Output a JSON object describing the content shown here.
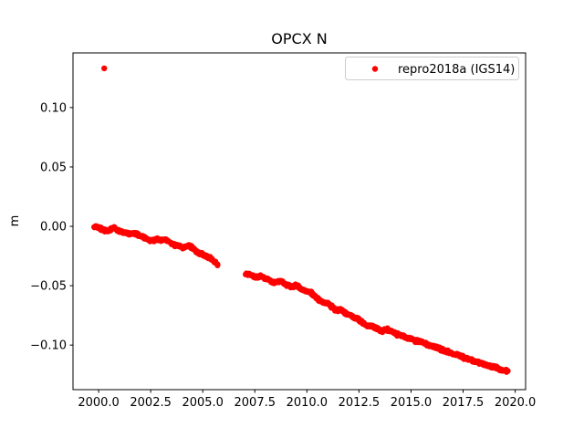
{
  "chart_data": {
    "type": "scatter",
    "title": "OPCX N",
    "xlabel": "",
    "ylabel": "m",
    "legend": {
      "label": "repro2018a (IGS14)",
      "position": "upper right",
      "border_color": "#cccccc",
      "background_color": "#ffffff"
    },
    "marker": {
      "style": "dot",
      "color": "#ff0000",
      "radius_px": 3
    },
    "axes": {
      "xlim": [
        1998.77,
        2020.5
      ],
      "ylim": [
        -0.1375,
        0.146
      ],
      "xticks": [
        2000.0,
        2002.5,
        2005.0,
        2007.5,
        2010.0,
        2012.5,
        2015.0,
        2017.5,
        2020.0
      ],
      "xtick_labels": [
        "2000.0",
        "2002.5",
        "2005.0",
        "2007.5",
        "2010.0",
        "2012.5",
        "2015.0",
        "2017.5",
        "2020.0"
      ],
      "yticks": [
        -0.1,
        -0.05,
        0.0,
        0.05,
        0.1
      ],
      "ytick_labels": [
        "−0.10",
        "−0.05",
        "0.00",
        "0.05",
        "0.10"
      ],
      "grid": false,
      "spine_color": "#000000"
    },
    "outlier_point": [
      2000.27,
      0.133
    ],
    "gap_years": [
      2005.72,
      2007.05
    ],
    "series": [
      {
        "name": "repro2018a (IGS14)",
        "color": "#ff0000",
        "segments": [
          {
            "points": [
              [
                1999.78,
                0.0
              ],
              [
                2000.0,
                -0.001
              ],
              [
                2000.2,
                -0.003
              ],
              [
                2000.45,
                -0.004
              ],
              [
                2000.7,
                -0.001
              ],
              [
                2000.9,
                -0.003
              ],
              [
                2001.1,
                -0.005
              ],
              [
                2001.35,
                -0.006
              ],
              [
                2001.6,
                -0.006
              ],
              [
                2001.9,
                -0.007
              ],
              [
                2002.1,
                -0.009
              ],
              [
                2002.35,
                -0.011
              ],
              [
                2002.6,
                -0.012
              ],
              [
                2002.8,
                -0.011
              ],
              [
                2003.0,
                -0.012
              ],
              [
                2003.2,
                -0.011
              ],
              [
                2003.45,
                -0.014
              ],
              [
                2003.7,
                -0.016
              ],
              [
                2003.9,
                -0.017
              ],
              [
                2004.1,
                -0.018
              ],
              [
                2004.3,
                -0.016
              ],
              [
                2004.55,
                -0.019
              ],
              [
                2004.8,
                -0.022
              ],
              [
                2005.0,
                -0.024
              ],
              [
                2005.2,
                -0.025
              ],
              [
                2005.45,
                -0.028
              ],
              [
                2005.72,
                -0.032
              ]
            ]
          },
          {
            "points": [
              [
                2007.05,
                -0.04
              ],
              [
                2007.3,
                -0.041
              ],
              [
                2007.55,
                -0.043
              ],
              [
                2007.8,
                -0.042
              ],
              [
                2008.0,
                -0.044
              ],
              [
                2008.25,
                -0.046
              ],
              [
                2008.5,
                -0.047
              ],
              [
                2008.75,
                -0.046
              ],
              [
                2009.0,
                -0.049
              ],
              [
                2009.25,
                -0.051
              ],
              [
                2009.5,
                -0.05
              ],
              [
                2009.75,
                -0.053
              ],
              [
                2010.0,
                -0.055
              ],
              [
                2010.2,
                -0.056
              ],
              [
                2010.45,
                -0.06
              ],
              [
                2010.7,
                -0.063
              ],
              [
                2010.9,
                -0.064
              ],
              [
                2011.1,
                -0.066
              ],
              [
                2011.4,
                -0.071
              ],
              [
                2011.6,
                -0.07
              ],
              [
                2011.85,
                -0.073
              ],
              [
                2012.1,
                -0.075
              ],
              [
                2012.35,
                -0.077
              ],
              [
                2012.6,
                -0.08
              ],
              [
                2012.85,
                -0.084
              ],
              [
                2013.1,
                -0.084
              ],
              [
                2013.35,
                -0.086
              ],
              [
                2013.6,
                -0.088
              ],
              [
                2013.85,
                -0.087
              ],
              [
                2014.1,
                -0.089
              ],
              [
                2014.35,
                -0.091
              ],
              [
                2014.6,
                -0.092
              ],
              [
                2014.85,
                -0.094
              ],
              [
                2015.1,
                -0.096
              ],
              [
                2015.35,
                -0.097
              ],
              [
                2015.6,
                -0.098
              ],
              [
                2015.85,
                -0.1
              ],
              [
                2016.1,
                -0.101
              ],
              [
                2016.35,
                -0.103
              ],
              [
                2016.6,
                -0.105
              ],
              [
                2016.85,
                -0.106
              ],
              [
                2017.1,
                -0.108
              ],
              [
                2017.35,
                -0.109
              ],
              [
                2017.6,
                -0.111
              ],
              [
                2017.85,
                -0.112
              ],
              [
                2018.1,
                -0.114
              ],
              [
                2018.35,
                -0.115
              ],
              [
                2018.6,
                -0.117
              ],
              [
                2018.85,
                -0.118
              ],
              [
                2019.1,
                -0.119
              ],
              [
                2019.35,
                -0.121
              ],
              [
                2019.65,
                -0.122
              ]
            ]
          }
        ]
      }
    ]
  }
}
